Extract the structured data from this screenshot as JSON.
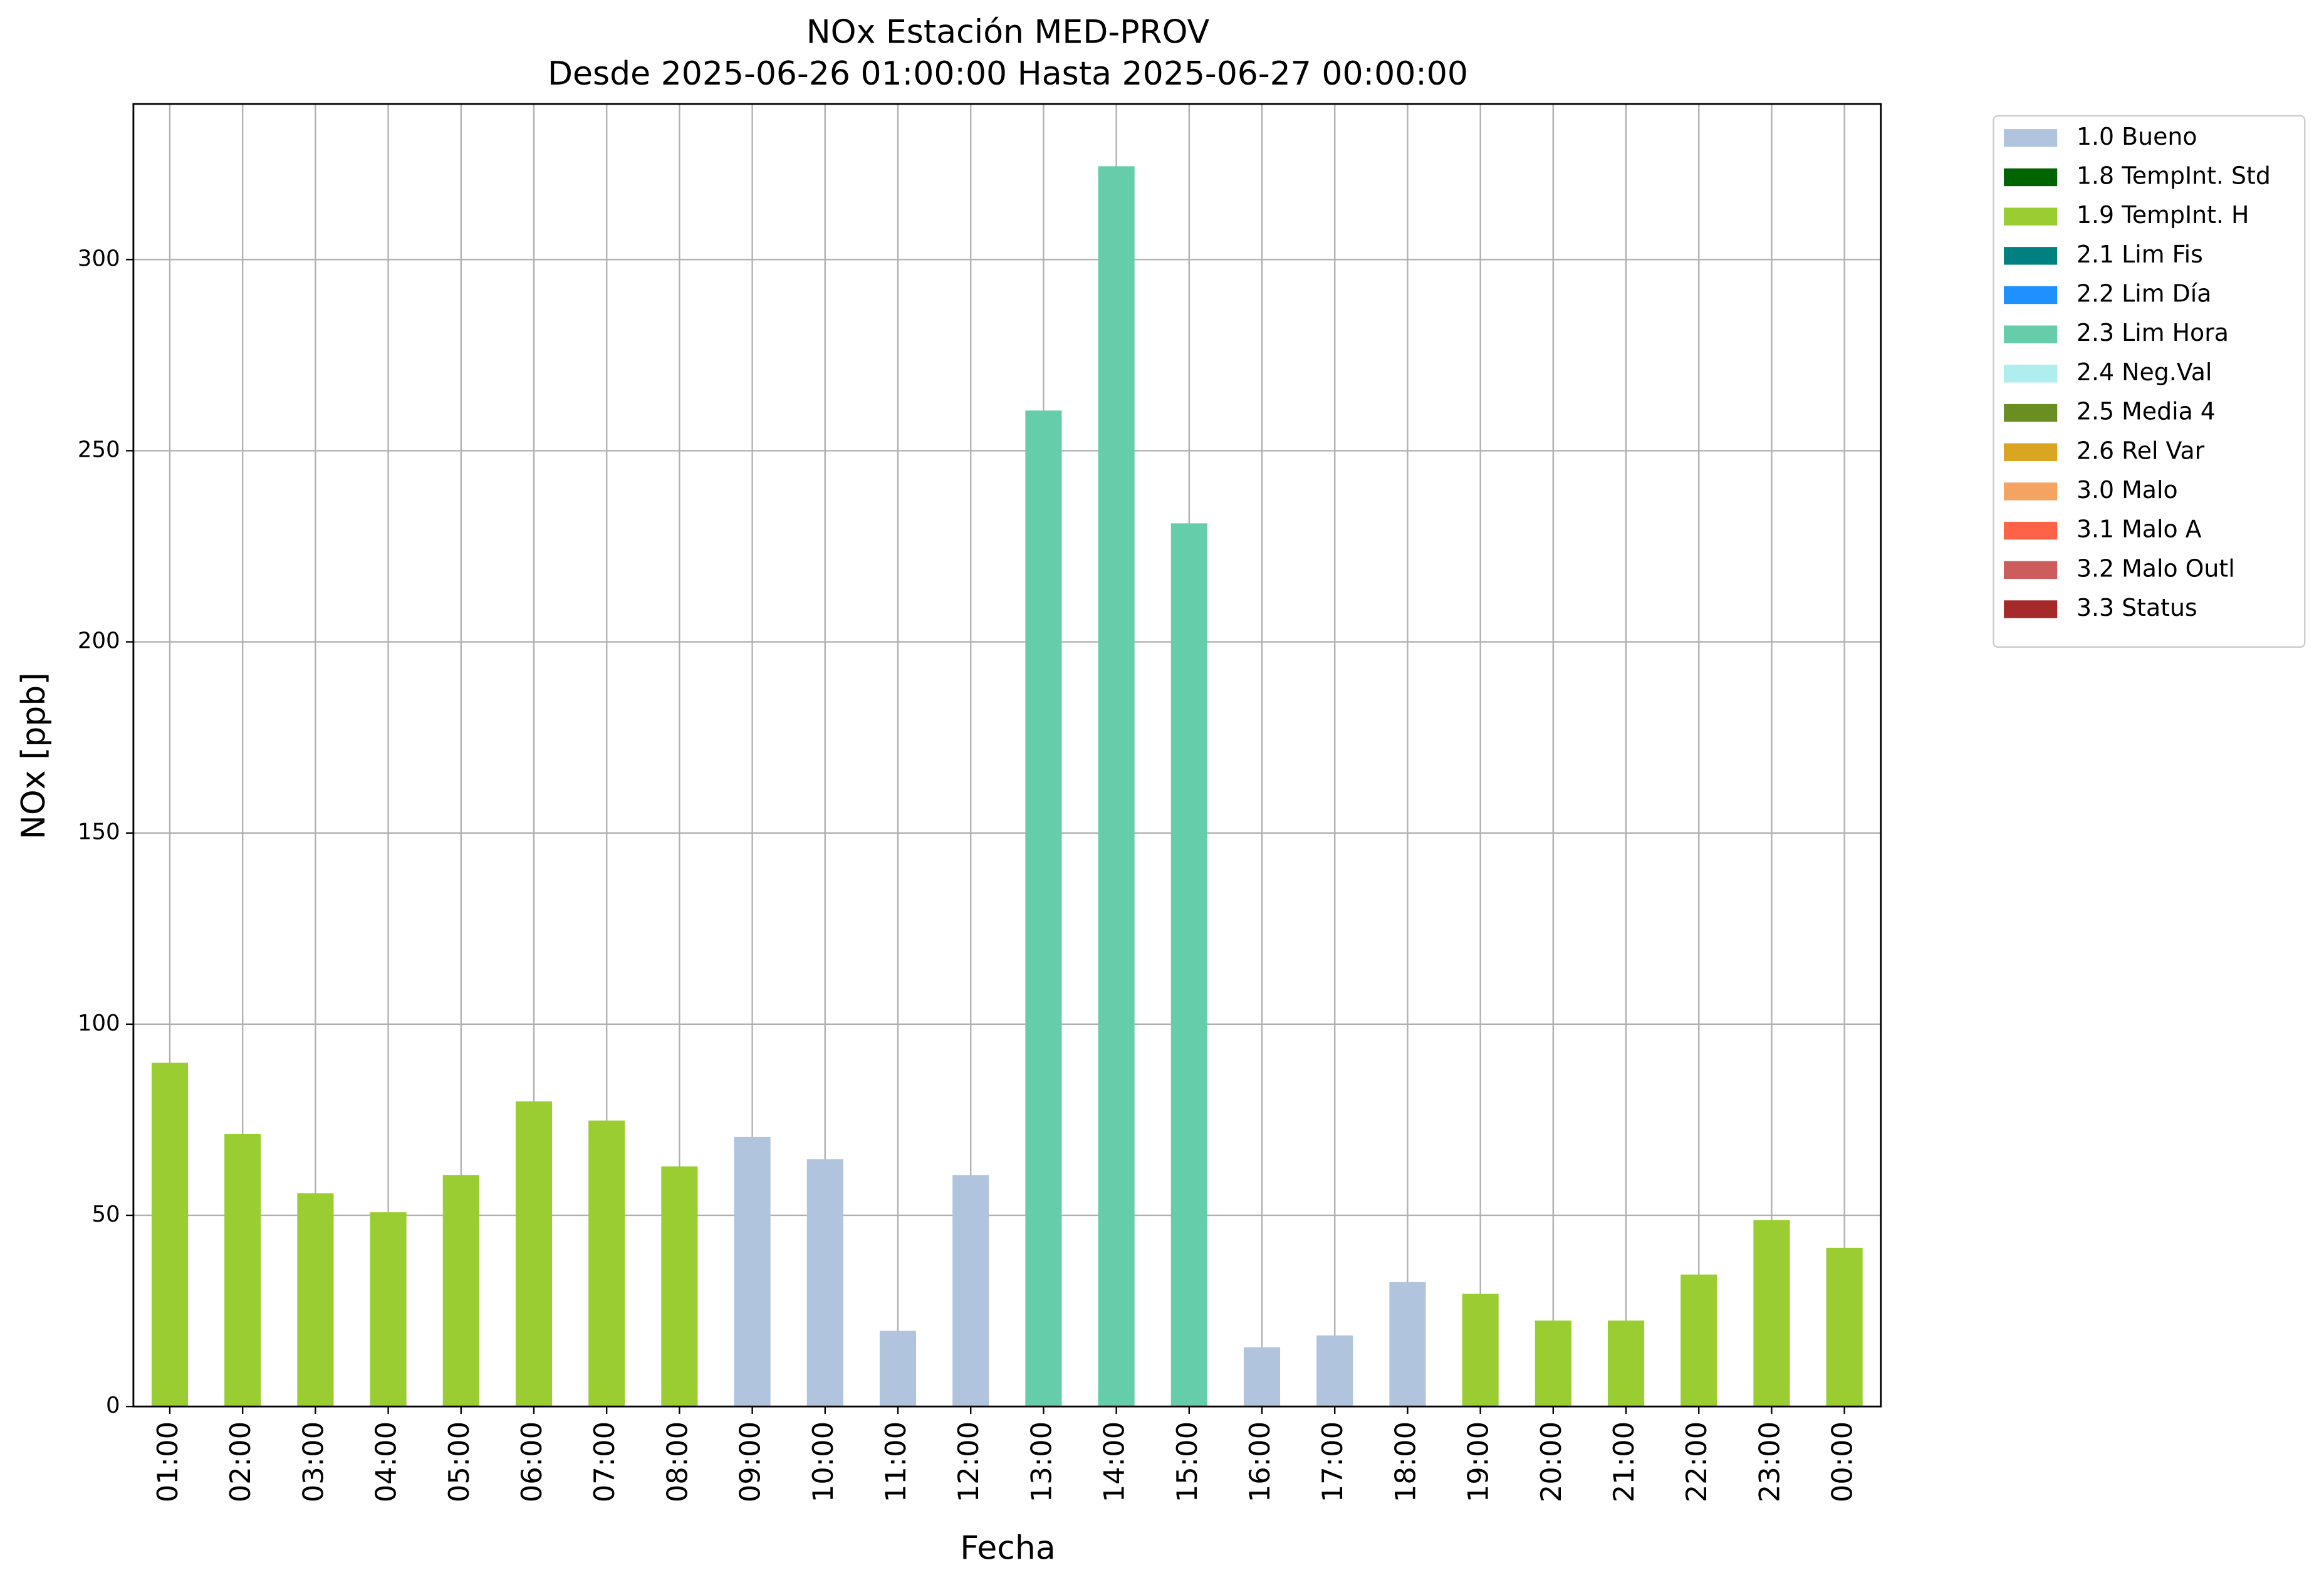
{
  "chart_data": {
    "type": "bar",
    "title": "NOx Estación MED-PROV",
    "subtitle": "Desde 2025-06-26 01:00:00 Hasta 2025-06-27 00:00:00",
    "x_label": "Fecha",
    "y_label": "NOx [ppb]",
    "categories": [
      "01:00",
      "02:00",
      "03:00",
      "04:00",
      "05:00",
      "06:00",
      "07:00",
      "08:00",
      "09:00",
      "10:00",
      "11:00",
      "12:00",
      "13:00",
      "14:00",
      "15:00",
      "16:00",
      "17:00",
      "18:00",
      "19:00",
      "20:00",
      "21:00",
      "22:00",
      "23:00",
      "00:00"
    ],
    "series": [
      {
        "name": "1.0 Bueno",
        "color": "#b0c4de",
        "values": [
          null,
          null,
          null,
          null,
          null,
          null,
          null,
          null,
          70.5,
          64.7,
          19.8,
          60.5,
          null,
          null,
          null,
          15.5,
          18.6,
          32.6,
          null,
          null,
          null,
          null,
          null,
          null
        ]
      },
      {
        "name": "1.8 TempInt. Std",
        "color": "#006400",
        "values": [
          null,
          null,
          null,
          null,
          null,
          null,
          null,
          null,
          null,
          null,
          null,
          null,
          null,
          null,
          null,
          null,
          null,
          null,
          null,
          null,
          null,
          null,
          null,
          null
        ]
      },
      {
        "name": "1.9 TempInt. H",
        "color": "#9acd32",
        "values": [
          89.9,
          71.3,
          55.8,
          50.8,
          60.5,
          79.8,
          74.8,
          62.8,
          null,
          null,
          null,
          null,
          null,
          null,
          null,
          null,
          null,
          null,
          29.5,
          22.5,
          22.5,
          34.5,
          48.8,
          41.5
        ]
      },
      {
        "name": "2.1 Lim Fis",
        "color": "#008080",
        "values": [
          null,
          null,
          null,
          null,
          null,
          null,
          null,
          null,
          null,
          null,
          null,
          null,
          null,
          null,
          null,
          null,
          null,
          null,
          null,
          null,
          null,
          null,
          null,
          null
        ]
      },
      {
        "name": "2.2 Lim Día",
        "color": "#1e90ff",
        "values": [
          null,
          null,
          null,
          null,
          null,
          null,
          null,
          null,
          null,
          null,
          null,
          null,
          null,
          null,
          null,
          null,
          null,
          null,
          null,
          null,
          null,
          null,
          null,
          null
        ]
      },
      {
        "name": "2.3 Lim Hora",
        "color": "#66cdaa",
        "values": [
          null,
          null,
          null,
          null,
          null,
          null,
          null,
          null,
          null,
          null,
          null,
          null,
          260.5,
          324.4,
          231,
          null,
          null,
          null,
          null,
          null,
          null,
          null,
          null,
          null
        ]
      },
      {
        "name": "2.4 Neg.Val",
        "color": "#afeeee",
        "values": [
          null,
          null,
          null,
          null,
          null,
          null,
          null,
          null,
          null,
          null,
          null,
          null,
          null,
          null,
          null,
          null,
          null,
          null,
          null,
          null,
          null,
          null,
          null,
          null
        ]
      },
      {
        "name": "2.5 Media 4",
        "color": "#6b8e23",
        "values": [
          null,
          null,
          null,
          null,
          null,
          null,
          null,
          null,
          null,
          null,
          null,
          null,
          null,
          null,
          null,
          null,
          null,
          null,
          null,
          null,
          null,
          null,
          null,
          null
        ]
      },
      {
        "name": "2.6 Rel Var",
        "color": "#daa520",
        "values": [
          null,
          null,
          null,
          null,
          null,
          null,
          null,
          null,
          null,
          null,
          null,
          null,
          null,
          null,
          null,
          null,
          null,
          null,
          null,
          null,
          null,
          null,
          null,
          null
        ]
      },
      {
        "name": "3.0 Malo",
        "color": "#f4a460",
        "values": [
          null,
          null,
          null,
          null,
          null,
          null,
          null,
          null,
          null,
          null,
          null,
          null,
          null,
          null,
          null,
          null,
          null,
          null,
          null,
          null,
          null,
          null,
          null,
          null
        ]
      },
      {
        "name": "3.1 Malo A",
        "color": "#ff6347",
        "values": [
          null,
          null,
          null,
          null,
          null,
          null,
          null,
          null,
          null,
          null,
          null,
          null,
          null,
          null,
          null,
          null,
          null,
          null,
          null,
          null,
          null,
          null,
          null,
          null
        ]
      },
      {
        "name": "3.2 Malo Outl",
        "color": "#cd5c5c",
        "values": [
          null,
          null,
          null,
          null,
          null,
          null,
          null,
          null,
          null,
          null,
          null,
          null,
          null,
          null,
          null,
          null,
          null,
          null,
          null,
          null,
          null,
          null,
          null,
          null
        ]
      },
      {
        "name": "3.3 Status",
        "color": "#a52a2a",
        "values": [
          null,
          null,
          null,
          null,
          null,
          null,
          null,
          null,
          null,
          null,
          null,
          null,
          null,
          null,
          null,
          null,
          null,
          null,
          null,
          null,
          null,
          null,
          null,
          null
        ]
      }
    ],
    "ylim": [
      0,
      340.7
    ],
    "yticks": [
      0,
      50,
      100,
      150,
      200,
      250,
      300
    ],
    "grid": true,
    "stacked": true,
    "legend": "outside-right"
  }
}
